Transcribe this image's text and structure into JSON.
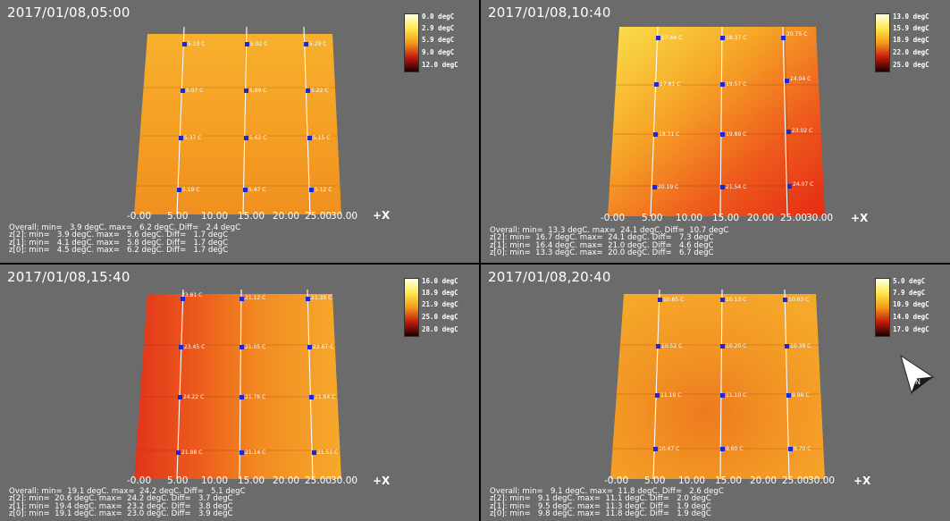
{
  "panels": [
    {
      "id": "p1",
      "timestamp": "2017/01/08,05:00",
      "legend_labels": [
        "0.0 degC",
        "2.9 degC",
        "5.9 degC",
        "9.0 degC",
        "12.0 degC"
      ],
      "legend_colors": [
        "#ffffe8",
        "#ffe84a",
        "#f29a1a",
        "#c41b0f",
        "#1c0000"
      ],
      "surface_color": "#f5a426",
      "sensor_labels": [
        [
          "5.13 C",
          "5.02 C",
          "5.29 C"
        ],
        [
          "5.07 C",
          "5.09 C",
          "5.22 C"
        ],
        [
          "5.37 C",
          "5.62 C",
          "5.15 C"
        ],
        [
          "5.19 C",
          "5.47 C",
          "5.12 C"
        ]
      ],
      "x_ticks": [
        "-0.00",
        "5.00",
        "10.00",
        "15.00",
        "20.00",
        "25.00",
        "30.00"
      ],
      "x_label": "+X",
      "stats": [
        "Overall: min=   3.9 degC. max=   6.2 degC. Diff=   2.4 degC",
        "z[2]: min=   3.9 degC. max=   5.6 degC. Diff=   1.7 degC",
        "z[1]: min=   4.1 degC. max=   5.8 degC. Diff=   1.7 degC",
        "z[0]: min=   4.5 degC. max=   6.2 degC. Diff=   1.7 degC"
      ]
    },
    {
      "id": "p2",
      "timestamp": "2017/01/08,10:40",
      "legend_labels": [
        "13.0 degC",
        "15.9 degC",
        "18.9 degC",
        "22.0 degC",
        "25.0 degC"
      ],
      "legend_colors": [
        "#ffffe8",
        "#ffe84a",
        "#f29a1a",
        "#c41b0f",
        "#1c0000"
      ],
      "surface_color": "#f07a1e",
      "sensor_labels": [
        [
          "17.44 C",
          "18.37 C",
          "20.75 C"
        ],
        [
          "17.81 C",
          "19.57 C",
          "24.04 C"
        ],
        [
          "18.31 C",
          "19.89 C",
          "23.02 C"
        ],
        [
          "20.19 C",
          "21.54 C",
          "24.07 C"
        ]
      ],
      "x_ticks": [
        "-0.00",
        "5.00",
        "10.00",
        "15.00",
        "20.00",
        "25.00",
        "30.00"
      ],
      "x_label": "+X",
      "stats": [
        "Overall: min=  13.3 degC. max=  24.1 degC. Diff=  10.7 degC",
        "z[2]: min=  16.7 degC. max=  24.1 degC. Diff=   7.3 degC",
        "z[1]: min=  16.4 degC. max=  21.0 degC. Diff=   4.6 degC",
        "z[0]: min=  13.3 degC. max=  20.0 degC. Diff=   6.7 degC"
      ]
    },
    {
      "id": "p3",
      "timestamp": "2017/01/08,15:40",
      "legend_labels": [
        "16.0 degC",
        "18.9 degC",
        "21.9 degC",
        "25.0 degC",
        "28.0 degC"
      ],
      "legend_colors": [
        "#ffffe8",
        "#ffe84a",
        "#f29a1a",
        "#c41b0f",
        "#1c0000"
      ],
      "surface_color": "#ef6d1d",
      "sensor_labels": [
        [
          "23.81 C",
          "21.12 C",
          "21.35 C"
        ],
        [
          "23.45 C",
          "21.05 C",
          "22.67 C"
        ],
        [
          "24.22 C",
          "21.76 C",
          "21.64 C"
        ],
        [
          "21.88 C",
          "21.14 C",
          "21.51 C"
        ]
      ],
      "x_ticks": [
        "-0.00",
        "5.00",
        "10.00",
        "15.00",
        "20.00",
        "25.00",
        "30.00"
      ],
      "x_label": "+X",
      "stats": [
        "Overall: min=  19.1 degC. max=  24.2 degC. Diff=   5.1 degC",
        "z[2]: min=  20.6 degC. max=  24.2 degC. Diff=   3.7 degC",
        "z[1]: min=  19.4 degC. max=  23.2 degC. Diff=   3.8 degC",
        "z[0]: min=  19.1 degC. max=  23.0 degC. Diff=   3.9 degC"
      ]
    },
    {
      "id": "p4",
      "timestamp": "2017/01/08,20:40",
      "legend_labels": [
        "5.0 degC",
        "7.9 degC",
        "10.9 degC",
        "14.0 degC",
        "17.0 degC"
      ],
      "legend_colors": [
        "#ffffe8",
        "#ffe84a",
        "#f29a1a",
        "#c41b0f",
        "#1c0000"
      ],
      "surface_color": "#f29422",
      "sensor_labels": [
        [
          "10.65 C",
          "10.13 C",
          "10.03 C"
        ],
        [
          "10.52 C",
          "10.20 C",
          "10.38 C"
        ],
        [
          "11.19 C",
          "11.10 C",
          "9.98 C"
        ],
        [
          "10.47 C",
          "9.60 C",
          "9.70 C"
        ]
      ],
      "x_ticks": [
        "-0.00",
        "5.00",
        "10.00",
        "15.00",
        "20.00",
        "25.00",
        "30.00"
      ],
      "x_label": "+X",
      "stats": [
        "Overall: min=   9.1 degC. max=  11.8 degC. Diff=   2.6 degC",
        "z[2]: min=   9.1 degC. max=  11.1 degC. Diff=   2.0 degC",
        "z[1]: min=   9.5 degC. max=  11.3 degC. Diff=   1.9 degC",
        "z[0]: min=   9.8 degC. max=  11.8 degC. Diff=   1.9 degC"
      ],
      "compass_label": "N"
    }
  ]
}
